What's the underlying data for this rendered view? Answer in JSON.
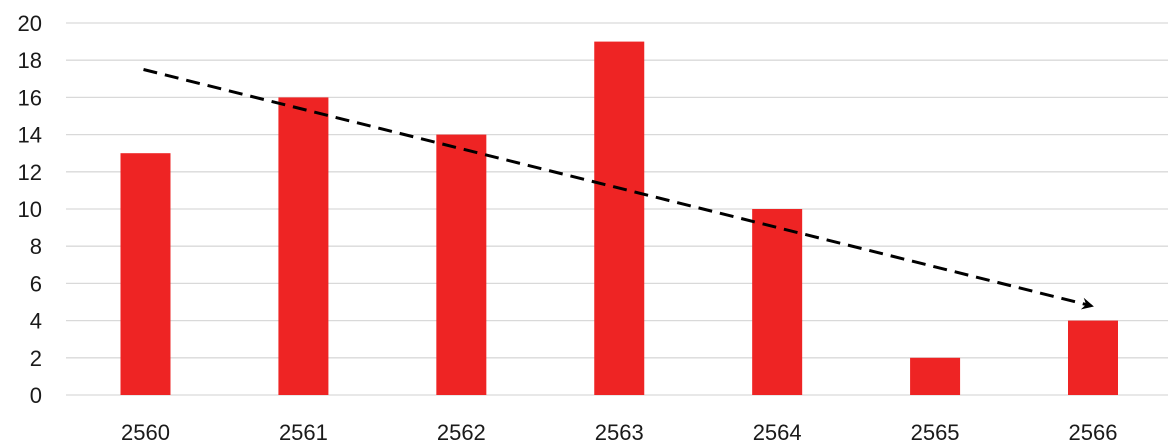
{
  "chart_data": {
    "type": "bar",
    "categories": [
      "2560",
      "2561",
      "2562",
      "2563",
      "2564",
      "2565",
      "2566"
    ],
    "values": [
      13,
      16,
      14,
      19,
      10,
      2,
      4
    ],
    "ylim": [
      0,
      20
    ],
    "yticks": [
      "0",
      "2",
      "4",
      "6",
      "8",
      "10",
      "12",
      "14",
      "16",
      "18",
      "20"
    ],
    "grid": true,
    "legend": "none",
    "trend_line": {
      "style": "dashed arrow",
      "start_value": 17.5,
      "end_value": 4.8
    },
    "colors": {
      "bar": "#ee2424",
      "trend": "#000000",
      "grid": "#d9d9d9"
    }
  }
}
